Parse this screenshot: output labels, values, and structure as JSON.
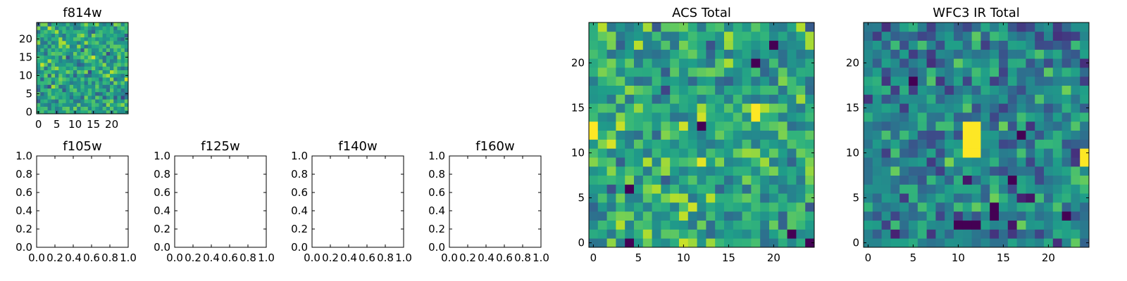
{
  "chart_data": [
    {
      "id": "f814w",
      "type": "heatmap",
      "title": "f814w",
      "grid_size": 25,
      "seed": 11,
      "colormap": "viridis",
      "vmin": -3.5,
      "vmax": 2.5,
      "hotspots": [],
      "darkspots": [],
      "xticks": [
        0,
        5,
        10,
        15,
        20
      ],
      "yticks": [
        0,
        5,
        10,
        15,
        20
      ],
      "xtick_labels": [
        "0",
        "5",
        "10",
        "15",
        "20"
      ],
      "ytick_labels": [
        "0",
        "5",
        "10",
        "15",
        "20"
      ],
      "xlim": [
        -0.5,
        24.5
      ],
      "ylim": [
        -0.5,
        24.5
      ]
    },
    {
      "id": "f105w",
      "type": "empty",
      "title": "f105w",
      "xticks": [
        0.0,
        0.2,
        0.4,
        0.6,
        0.8,
        1.0
      ],
      "yticks": [
        0.0,
        0.2,
        0.4,
        0.6,
        0.8,
        1.0
      ],
      "xtick_labels": [
        "0.0",
        "0.2",
        "0.4",
        "0.6",
        "0.8",
        "1.0"
      ],
      "ytick_labels": [
        "0.0",
        "0.2",
        "0.4",
        "0.6",
        "0.8",
        "1.0"
      ],
      "xlim": [
        0,
        1
      ],
      "ylim": [
        0,
        1
      ]
    },
    {
      "id": "f125w",
      "type": "empty",
      "title": "f125w",
      "xticks": [
        0.0,
        0.2,
        0.4,
        0.6,
        0.8,
        1.0
      ],
      "yticks": [
        0.0,
        0.2,
        0.4,
        0.6,
        0.8,
        1.0
      ],
      "xtick_labels": [
        "0.0",
        "0.2",
        "0.4",
        "0.6",
        "0.8",
        "1.0"
      ],
      "ytick_labels": [
        "0.0",
        "0.2",
        "0.4",
        "0.6",
        "0.8",
        "1.0"
      ],
      "xlim": [
        0,
        1
      ],
      "ylim": [
        0,
        1
      ]
    },
    {
      "id": "f140w",
      "type": "empty",
      "title": "f140w",
      "xticks": [
        0.0,
        0.2,
        0.4,
        0.6,
        0.8,
        1.0
      ],
      "yticks": [
        0.0,
        0.2,
        0.4,
        0.6,
        0.8,
        1.0
      ],
      "xtick_labels": [
        "0.0",
        "0.2",
        "0.4",
        "0.6",
        "0.8",
        "1.0"
      ],
      "ytick_labels": [
        "0.0",
        "0.2",
        "0.4",
        "0.6",
        "0.8",
        "1.0"
      ],
      "xlim": [
        0,
        1
      ],
      "ylim": [
        0,
        1
      ]
    },
    {
      "id": "f160w",
      "type": "empty",
      "title": "f160w",
      "xticks": [
        0.0,
        0.2,
        0.4,
        0.6,
        0.8,
        1.0
      ],
      "yticks": [
        0.0,
        0.2,
        0.4,
        0.6,
        0.8,
        1.0
      ],
      "xtick_labels": [
        "0.0",
        "0.2",
        "0.4",
        "0.6",
        "0.8",
        "1.0"
      ],
      "ytick_labels": [
        "0.0",
        "0.2",
        "0.4",
        "0.6",
        "0.8",
        "1.0"
      ],
      "xlim": [
        0,
        1
      ],
      "ylim": [
        0,
        1
      ]
    },
    {
      "id": "acs_total",
      "type": "heatmap",
      "title": "ACS Total",
      "grid_size": 25,
      "seed": 23,
      "colormap": "viridis",
      "vmin": -3.2,
      "vmax": 2.2,
      "hotspots": [
        [
          0,
          12
        ],
        [
          0,
          13
        ],
        [
          18,
          14
        ],
        [
          18,
          15
        ]
      ],
      "darkspots": [
        [
          18,
          20
        ],
        [
          20,
          22
        ],
        [
          4,
          6
        ],
        [
          12,
          13
        ],
        [
          24,
          0
        ],
        [
          22,
          1
        ],
        [
          4,
          0
        ]
      ],
      "xticks": [
        0,
        5,
        10,
        15,
        20
      ],
      "yticks": [
        0,
        5,
        10,
        15,
        20
      ],
      "xtick_labels": [
        "0",
        "5",
        "10",
        "15",
        "20"
      ],
      "ytick_labels": [
        "0",
        "5",
        "10",
        "15",
        "20"
      ],
      "xlim": [
        -0.5,
        24.5
      ],
      "ylim": [
        -0.5,
        24.5
      ]
    },
    {
      "id": "wfc3_ir_total",
      "type": "heatmap",
      "title": "WFC3 IR Total",
      "grid_size": 25,
      "seed": 37,
      "colormap": "viridis",
      "vmin": -2.4,
      "vmax": 3.0,
      "hotspots": [
        [
          11,
          11
        ],
        [
          11,
          12
        ],
        [
          12,
          11
        ],
        [
          12,
          12
        ],
        [
          11,
          13
        ],
        [
          12,
          13
        ],
        [
          11,
          10
        ],
        [
          12,
          10
        ],
        [
          24,
          10
        ],
        [
          24,
          9
        ]
      ],
      "darkspots": [
        [
          5,
          18
        ],
        [
          14,
          4
        ],
        [
          14,
          3
        ],
        [
          10,
          2
        ],
        [
          11,
          2
        ],
        [
          12,
          2
        ],
        [
          17,
          12
        ],
        [
          16,
          7
        ],
        [
          22,
          3
        ]
      ],
      "xticks": [
        0,
        5,
        10,
        15,
        20
      ],
      "yticks": [
        0,
        5,
        10,
        15,
        20
      ],
      "xtick_labels": [
        "0",
        "5",
        "10",
        "15",
        "20"
      ],
      "ytick_labels": [
        "0",
        "5",
        "10",
        "15",
        "20"
      ],
      "xlim": [
        -0.5,
        24.5
      ],
      "ylim": [
        -0.5,
        24.5
      ]
    }
  ]
}
